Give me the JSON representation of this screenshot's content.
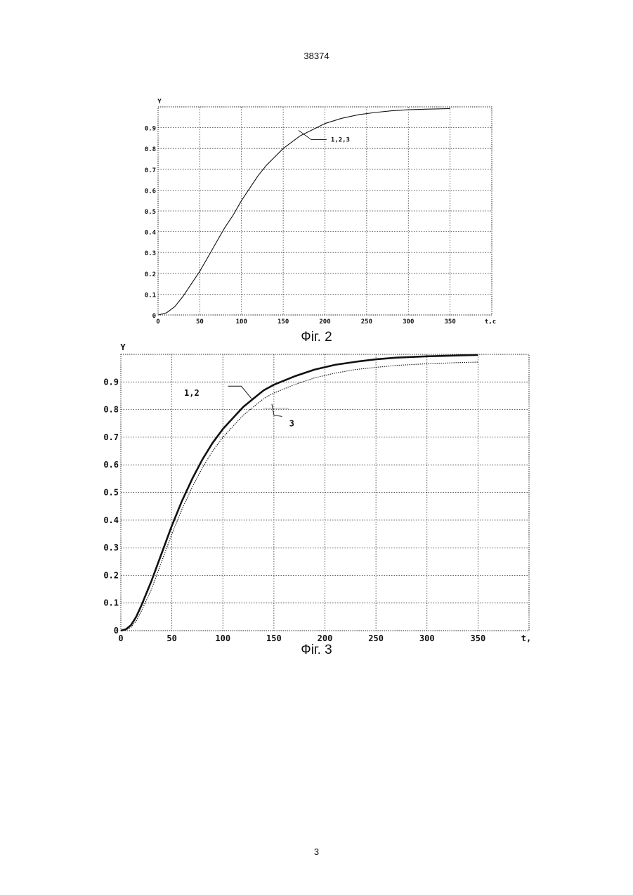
{
  "page": {
    "header": "38374",
    "number": "3"
  },
  "chart_data": [
    {
      "type": "line",
      "caption": "Фіг. 2",
      "ylabel": "Y",
      "xlabel": "t,c",
      "xlim": [
        0,
        400
      ],
      "ylim": [
        0,
        1.0
      ],
      "x_ticks": [
        "0",
        "50",
        "100",
        "150",
        "200",
        "250",
        "300",
        "350"
      ],
      "y_ticks": [
        "0",
        "0.1",
        "0.2",
        "0.3",
        "0.4",
        "0.5",
        "0.6",
        "0.7",
        "0.8",
        "0.9"
      ],
      "grid": true,
      "annotations": [
        {
          "text": "1,2,3",
          "x": 170,
          "y": 0.87
        }
      ],
      "series": [
        {
          "name": "1,2,3",
          "x": [
            0,
            10,
            20,
            30,
            40,
            50,
            60,
            70,
            80,
            90,
            100,
            110,
            120,
            130,
            140,
            150,
            160,
            170,
            180,
            190,
            200,
            220,
            240,
            260,
            280,
            300,
            320,
            350
          ],
          "y": [
            0,
            0.01,
            0.04,
            0.09,
            0.15,
            0.21,
            0.28,
            0.35,
            0.42,
            0.48,
            0.55,
            0.61,
            0.67,
            0.72,
            0.76,
            0.8,
            0.83,
            0.86,
            0.88,
            0.9,
            0.92,
            0.945,
            0.962,
            0.973,
            0.981,
            0.986,
            0.989,
            0.992
          ]
        }
      ]
    },
    {
      "type": "line",
      "caption": "Фіг. 3",
      "ylabel": "Y",
      "xlabel": "t,",
      "xlim": [
        0,
        400
      ],
      "ylim": [
        0,
        1.0
      ],
      "x_ticks": [
        "0",
        "50",
        "100",
        "150",
        "200",
        "250",
        "300",
        "350"
      ],
      "y_ticks": [
        "0",
        "0.1",
        "0.2",
        "0.3",
        "0.4",
        "0.5",
        "0.6",
        "0.7",
        "0.8",
        "0.9"
      ],
      "grid": true,
      "annotations": [
        {
          "text": "1,2",
          "x": 125,
          "y": 0.85
        },
        {
          "text": "3",
          "x": 155,
          "y": 0.79
        }
      ],
      "series": [
        {
          "name": "1,2",
          "x": [
            0,
            5,
            10,
            15,
            20,
            30,
            40,
            50,
            60,
            70,
            80,
            90,
            100,
            110,
            120,
            130,
            140,
            150,
            170,
            190,
            210,
            230,
            250,
            270,
            300,
            330,
            350
          ],
          "y": [
            0,
            0.005,
            0.02,
            0.05,
            0.09,
            0.18,
            0.28,
            0.38,
            0.47,
            0.55,
            0.62,
            0.68,
            0.73,
            0.77,
            0.81,
            0.84,
            0.87,
            0.89,
            0.92,
            0.945,
            0.962,
            0.973,
            0.982,
            0.988,
            0.993,
            0.996,
            0.998
          ]
        },
        {
          "name": "3",
          "x": [
            0,
            5,
            10,
            15,
            20,
            30,
            40,
            50,
            60,
            70,
            80,
            90,
            100,
            110,
            120,
            130,
            140,
            150,
            170,
            190,
            210,
            230,
            250,
            270,
            300,
            330,
            350
          ],
          "y": [
            0,
            0.003,
            0.012,
            0.035,
            0.07,
            0.15,
            0.25,
            0.35,
            0.44,
            0.52,
            0.59,
            0.65,
            0.7,
            0.74,
            0.78,
            0.81,
            0.84,
            0.86,
            0.89,
            0.915,
            0.932,
            0.945,
            0.953,
            0.96,
            0.966,
            0.97,
            0.972
          ]
        }
      ]
    }
  ]
}
